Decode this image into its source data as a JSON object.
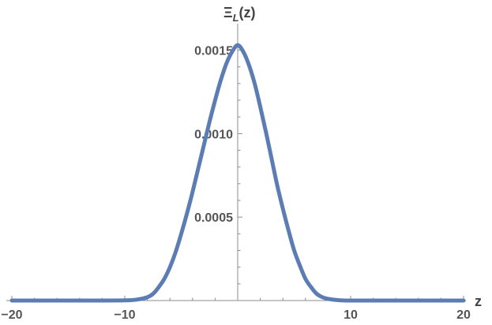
{
  "chart_data": {
    "type": "line",
    "title": "",
    "xlabel": "z",
    "ylabel_main": "Ξ",
    "ylabel_sub": "L",
    "ylabel_tail": "(z)",
    "xlim": [
      -20,
      20
    ],
    "ylim": [
      0,
      0.00155
    ],
    "x_ticks_labeled": [
      {
        "value": -20,
        "label": "−20"
      },
      {
        "value": -10,
        "label": "−10"
      },
      {
        "value": 10,
        "label": "10"
      },
      {
        "value": 20,
        "label": "20"
      }
    ],
    "y_ticks_labeled": [
      {
        "value": 0.0005,
        "label": "0.0005"
      },
      {
        "value": 0.001,
        "label": "0.0010"
      },
      {
        "value": 0.0015,
        "label": "0.0015"
      }
    ],
    "grid": false,
    "series": [
      {
        "color": "#5b7db4",
        "x": [
          -20,
          -16,
          -12,
          -10,
          -9,
          -8,
          -7.5,
          -7,
          -6.5,
          -6,
          -5.5,
          -5,
          -4.5,
          -4,
          -3.5,
          -3,
          -2.5,
          -2,
          -1.5,
          -1,
          -0.5,
          0,
          0.5,
          1,
          1.5,
          2,
          2.5,
          3,
          3.5,
          4,
          4.5,
          5,
          5.5,
          6,
          6.5,
          7,
          7.5,
          8,
          9,
          10,
          12,
          16,
          20
        ],
        "y": [
          0,
          0,
          0,
          1e-06,
          5e-06,
          2e-05,
          4e-05,
          8e-05,
          0.00013,
          0.0002,
          0.00029,
          0.0004,
          0.00052,
          0.00065,
          0.00079,
          0.00093,
          0.00107,
          0.0012,
          0.00132,
          0.00142,
          0.00149,
          0.00153,
          0.00149,
          0.00141,
          0.0013,
          0.00116,
          0.00101,
          0.00085,
          0.00069,
          0.00055,
          0.00042,
          0.0003,
          0.00021,
          0.00013,
          8e-05,
          4e-05,
          2e-05,
          1e-05,
          2e-06,
          0,
          0,
          0,
          0
        ]
      }
    ]
  }
}
